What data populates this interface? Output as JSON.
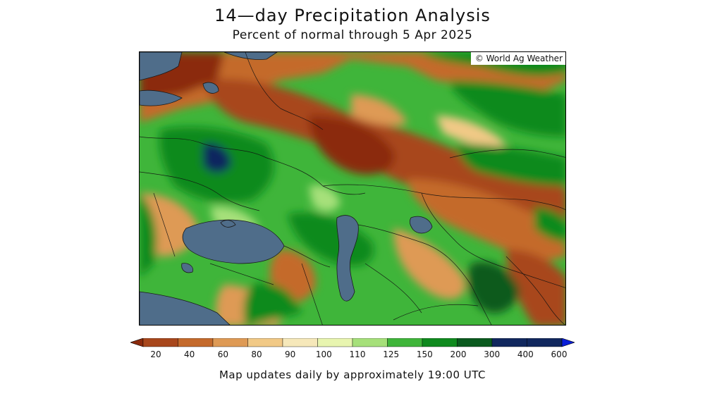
{
  "header": {
    "title": "14—day Precipitation Analysis",
    "subtitle": "Percent of normal through 5 Apr 2025"
  },
  "map": {
    "credit": "© World Ag Weather",
    "water_color": "#4f6d8a"
  },
  "legend": {
    "ticks": [
      "20",
      "40",
      "60",
      "80",
      "90",
      "100",
      "110",
      "125",
      "150",
      "200",
      "300",
      "400",
      "600"
    ],
    "colors": [
      "#8b2a0c",
      "#a8471c",
      "#c46a2c",
      "#de9a55",
      "#f1c986",
      "#f6e8ba",
      "#e8f5b0",
      "#a6e07a",
      "#3fb53a",
      "#0f8a1e",
      "#0a5a1e",
      "#11285e",
      "#0a1fd8"
    ]
  },
  "footer": {
    "note": "Map updates daily by approximately 19:00 UTC"
  }
}
